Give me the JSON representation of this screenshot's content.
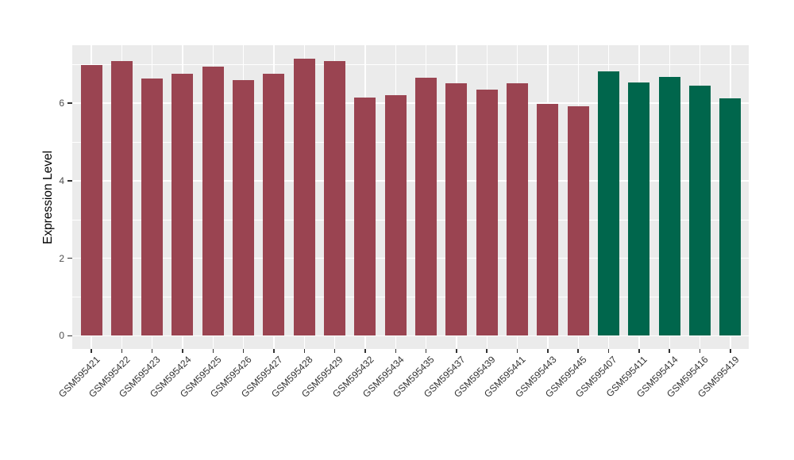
{
  "chart_data": {
    "type": "bar",
    "title": "",
    "xlabel": "",
    "ylabel": "Expression Level",
    "ylim": [
      0,
      7.5
    ],
    "yticks_major": [
      0,
      2,
      4,
      6
    ],
    "yticks_minor": [
      1,
      3,
      5,
      7
    ],
    "grid": "on",
    "legend": "none",
    "panel_background": "#EBEBEB",
    "gridline_color": "#FFFFFF",
    "categories": [
      "GSM595421",
      "GSM595422",
      "GSM595423",
      "GSM595424",
      "GSM595425",
      "GSM595426",
      "GSM595427",
      "GSM595428",
      "GSM595429",
      "GSM595432",
      "GSM595434",
      "GSM595435",
      "GSM595437",
      "GSM595439",
      "GSM595441",
      "GSM595443",
      "GSM595445",
      "GSM595407",
      "GSM595411",
      "GSM595414",
      "GSM595416",
      "GSM595419"
    ],
    "values": [
      6.98,
      7.08,
      6.63,
      6.76,
      6.95,
      6.59,
      6.76,
      7.14,
      7.08,
      6.15,
      6.21,
      6.65,
      6.51,
      6.35,
      6.51,
      5.98,
      5.92,
      6.83,
      6.54,
      6.67,
      6.45,
      6.12
    ],
    "groups": [
      "maroon",
      "maroon",
      "maroon",
      "maroon",
      "maroon",
      "maroon",
      "maroon",
      "maroon",
      "maroon",
      "maroon",
      "maroon",
      "maroon",
      "maroon",
      "maroon",
      "maroon",
      "maroon",
      "maroon",
      "green",
      "green",
      "green",
      "green",
      "green"
    ],
    "group_colors": {
      "maroon": "#9A4451",
      "green": "#00664C"
    },
    "axis_text_color": "#4D4D4D",
    "tick_mark_color": "#333333"
  }
}
